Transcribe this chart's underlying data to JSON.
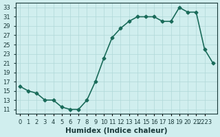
{
  "x": [
    0,
    1,
    2,
    3,
    4,
    5,
    6,
    7,
    8,
    9,
    10,
    11,
    12,
    13,
    14,
    15,
    16,
    17,
    18,
    19,
    20,
    21,
    22,
    23
  ],
  "y": [
    16,
    15,
    14.5,
    13,
    13,
    11.5,
    11,
    11,
    13,
    17,
    22,
    26.5,
    28.5,
    30,
    31,
    31,
    31,
    30,
    30,
    33,
    32,
    32,
    24,
    21
  ],
  "line_color": "#1a6b5a",
  "marker": "D",
  "marker_size": 2.5,
  "background_color": "#d0eeee",
  "grid_color": "#b0d8d8",
  "xlabel": "Humidex (Indice chaleur)",
  "xlim": [
    -0.5,
    23.5
  ],
  "ylim": [
    10,
    34
  ],
  "yticks": [
    11,
    13,
    15,
    17,
    19,
    21,
    23,
    25,
    27,
    29,
    31,
    33
  ],
  "xtick_positions": [
    0,
    1,
    2,
    3,
    4,
    5,
    6,
    7,
    8,
    9,
    10,
    11,
    12,
    13,
    14,
    15,
    16,
    17,
    18,
    19,
    20,
    21,
    22
  ],
  "xtick_labels": [
    "0",
    "1",
    "2",
    "3",
    "4",
    "5",
    "6",
    "7",
    "8",
    "9",
    "10",
    "11",
    "12",
    "13",
    "14",
    "15",
    "16",
    "17",
    "18",
    "19",
    "20",
    "21",
    "2223"
  ],
  "font_color": "#1a3a3a",
  "tick_fontsize": 6,
  "xlabel_fontsize": 7.5,
  "linewidth": 1.2
}
